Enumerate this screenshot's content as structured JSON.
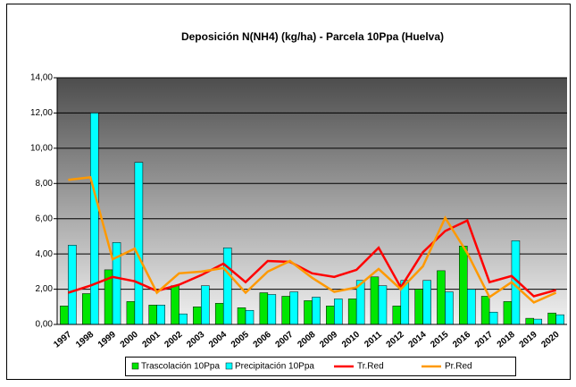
{
  "chart_data": {
    "type": "bar",
    "title": "Deposición N(NH4) (kg/ha) - Parcela 10Ppa (Huelva)",
    "categories": [
      "1997",
      "1998",
      "1999",
      "2000",
      "2001",
      "2002",
      "2003",
      "2004",
      "2005",
      "2006",
      "2007",
      "2008",
      "2009",
      "2010",
      "2011",
      "2012",
      "2014",
      "2015",
      "2016",
      "2017",
      "2018",
      "2019",
      "2020"
    ],
    "series": [
      {
        "name": "Trascolación  10Ppa",
        "type": "bar",
        "color": "#00e600",
        "values": [
          1.05,
          1.75,
          3.1,
          1.3,
          1.1,
          2.2,
          1.0,
          1.2,
          0.95,
          1.8,
          1.6,
          1.35,
          1.05,
          1.45,
          2.7,
          1.05,
          2.0,
          3.05,
          4.45,
          1.6,
          1.3,
          0.35,
          0.65
        ]
      },
      {
        "name": "Precipitación 10Ppa",
        "type": "bar",
        "color": "#00ffff",
        "values": [
          4.5,
          12.0,
          4.65,
          9.2,
          1.1,
          0.6,
          2.2,
          4.35,
          0.8,
          1.7,
          1.85,
          1.55,
          1.45,
          2.5,
          2.2,
          2.5,
          2.5,
          1.85,
          2.0,
          0.7,
          4.75,
          0.3,
          0.55
        ]
      },
      {
        "name": "Tr.Red",
        "type": "line",
        "color": "#ff0000",
        "values": [
          1.8,
          2.2,
          2.7,
          2.45,
          1.9,
          2.25,
          2.8,
          3.45,
          2.4,
          3.6,
          3.55,
          2.9,
          2.7,
          3.1,
          4.35,
          2.1,
          4.1,
          5.3,
          5.9,
          2.4,
          2.75,
          1.6,
          1.95
        ]
      },
      {
        "name": "Pr.Red",
        "type": "line",
        "color": "#ff9900",
        "values": [
          8.2,
          8.35,
          3.7,
          4.3,
          1.8,
          2.9,
          3.0,
          3.2,
          1.8,
          3.0,
          3.6,
          2.65,
          1.85,
          2.1,
          3.15,
          2.0,
          3.3,
          6.05,
          4.05,
          1.55,
          2.4,
          1.25,
          1.8
        ]
      }
    ],
    "ylim": [
      0,
      14
    ],
    "yticks": [
      {
        "value": 0,
        "label": "0,00"
      },
      {
        "value": 2,
        "label": "2,00"
      },
      {
        "value": 4,
        "label": "4,00"
      },
      {
        "value": 6,
        "label": "6,00"
      },
      {
        "value": 8,
        "label": "8,00"
      },
      {
        "value": 10,
        "label": "10,00"
      },
      {
        "value": 12,
        "label": "12,00"
      },
      {
        "value": 14,
        "label": "14,00"
      }
    ],
    "grid": true,
    "legend": "bottom"
  }
}
